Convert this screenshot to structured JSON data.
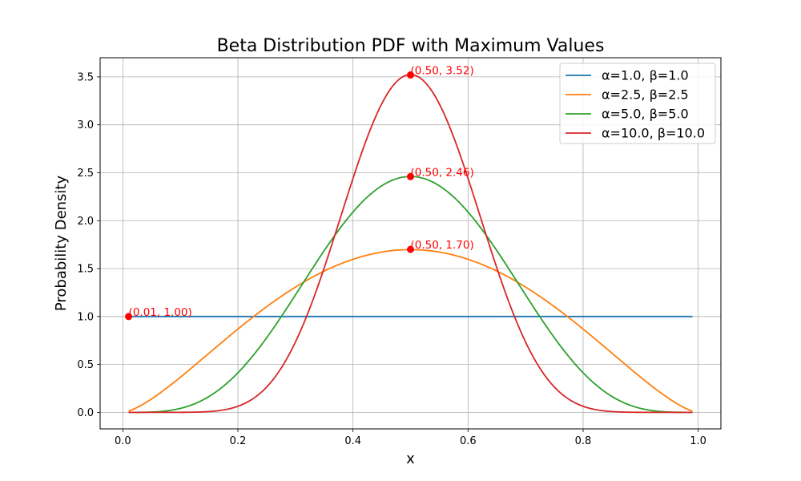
{
  "chart_data": {
    "type": "line",
    "title": "Beta Distribution PDF with Maximum Values",
    "xlabel": "x",
    "ylabel": "Probability Density",
    "xlim": [
      -0.0395,
      1.0395
    ],
    "ylim": [
      -0.1725,
      3.7
    ],
    "xticks": [
      0.0,
      0.2,
      0.4,
      0.6,
      0.8,
      1.0
    ],
    "xtick_labels": [
      "0.0",
      "0.2",
      "0.4",
      "0.6",
      "0.8",
      "1.0"
    ],
    "yticks": [
      0.0,
      0.5,
      1.0,
      1.5,
      2.0,
      2.5,
      3.0,
      3.5
    ],
    "ytick_labels": [
      "0.0",
      "0.5",
      "1.0",
      "1.5",
      "2.0",
      "2.5",
      "3.0",
      "3.5"
    ],
    "grid": true,
    "legend_position": "top-right",
    "x_range": [
      0.01,
      0.99
    ],
    "series": [
      {
        "name": "α=1.0, β=1.0",
        "alpha": 1.0,
        "beta": 1.0,
        "color": "#1f77b4"
      },
      {
        "name": "α=2.5, β=2.5",
        "alpha": 2.5,
        "beta": 2.5,
        "color": "#ff7f0e"
      },
      {
        "name": "α=5.0, β=5.0",
        "alpha": 5.0,
        "beta": 5.0,
        "color": "#2ca02c"
      },
      {
        "name": "α=10.0, β=10.0",
        "alpha": 10.0,
        "beta": 10.0,
        "color": "#d62728"
      }
    ],
    "max_points": [
      {
        "x": 0.01,
        "y": 1.0,
        "label": "(0.01, 1.00)"
      },
      {
        "x": 0.5,
        "y": 1.7,
        "label": "(0.50, 1.70)"
      },
      {
        "x": 0.5,
        "y": 2.46,
        "label": "(0.50, 2.46)"
      },
      {
        "x": 0.5,
        "y": 3.52,
        "label": "(0.50, 3.52)"
      }
    ],
    "annotation_color": "#ff0000"
  }
}
